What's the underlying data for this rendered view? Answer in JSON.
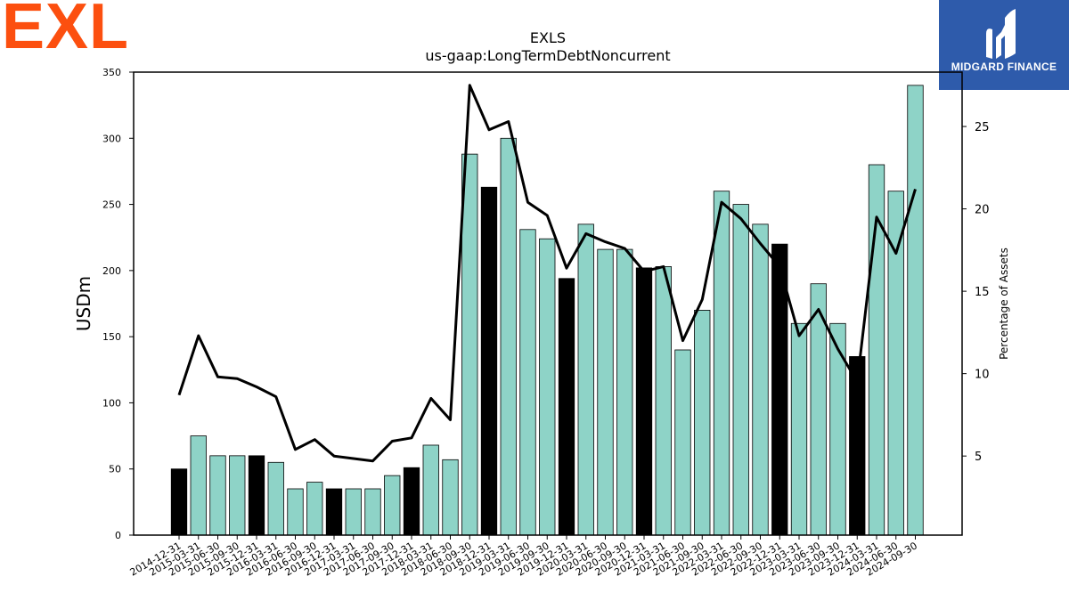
{
  "logos": {
    "left_text": "EXL",
    "right_text": "MIDGARD FINANCE",
    "left_color": "#fc4f0f",
    "right_bg_color": "#2e5bab"
  },
  "chart_data": {
    "type": "bar",
    "title": "EXLS",
    "subtitle": "us-gaap:LongTermDebtNoncurrent",
    "ylabel": "USDm",
    "y2label": "Percentage of Assets",
    "ylim": [
      0,
      350
    ],
    "y2lim": [
      0.2,
      28.3
    ],
    "yticks": [
      0,
      50,
      100,
      150,
      200,
      250,
      300,
      350
    ],
    "y2ticks": [
      5,
      10,
      15,
      20,
      25
    ],
    "grid": false,
    "colors": {
      "bar_default": "#8ed3c7",
      "bar_year_end": "#000000",
      "line": "#000000"
    },
    "categories": [
      "2014-12-31",
      "2015-03-31",
      "2015-06-30",
      "2015-09-30",
      "2015-12-31",
      "2016-03-31",
      "2016-06-30",
      "2016-09-30",
      "2016-12-31",
      "2017-03-31",
      "2017-06-30",
      "2017-09-30",
      "2017-12-31",
      "2018-03-31",
      "2018-06-30",
      "2018-09-30",
      "2018-12-31",
      "2019-03-31",
      "2019-06-30",
      "2019-09-30",
      "2019-12-31",
      "2020-03-31",
      "2020-06-30",
      "2020-09-30",
      "2020-12-31",
      "2021-03-31",
      "2021-06-30",
      "2021-09-30",
      "2022-03-31",
      "2022-06-30",
      "2022-09-30",
      "2022-12-31",
      "2023-03-31",
      "2023-06-30",
      "2023-09-30",
      "2023-12-31",
      "2024-03-31",
      "2024-06-30",
      "2024-09-30"
    ],
    "series": [
      {
        "kind": "bar",
        "axis": "left",
        "values": [
          50,
          75,
          60,
          60,
          60,
          55,
          35,
          40,
          35,
          35,
          35,
          45,
          51,
          68,
          57,
          288,
          263,
          300,
          231,
          224,
          194,
          235,
          216,
          216,
          202,
          203,
          140,
          170,
          260,
          250,
          235,
          220,
          160,
          190,
          160,
          135,
          280,
          260,
          340
        ]
      },
      {
        "kind": "line",
        "axis": "right",
        "values": [
          8.7,
          12.3,
          9.8,
          9.7,
          9.2,
          8.6,
          5.4,
          6.0,
          5.0,
          4.85,
          4.7,
          5.9,
          6.1,
          8.5,
          7.2,
          27.5,
          24.8,
          25.3,
          20.4,
          19.6,
          16.4,
          18.5,
          18.0,
          17.6,
          16.2,
          16.5,
          12.0,
          14.5,
          20.4,
          19.4,
          17.9,
          16.5,
          12.3,
          13.9,
          11.5,
          9.5,
          19.5,
          17.3,
          21.2
        ]
      }
    ],
    "year_end_indices": [
      0,
      4,
      8,
      12,
      16,
      20,
      24,
      31,
      35
    ]
  }
}
